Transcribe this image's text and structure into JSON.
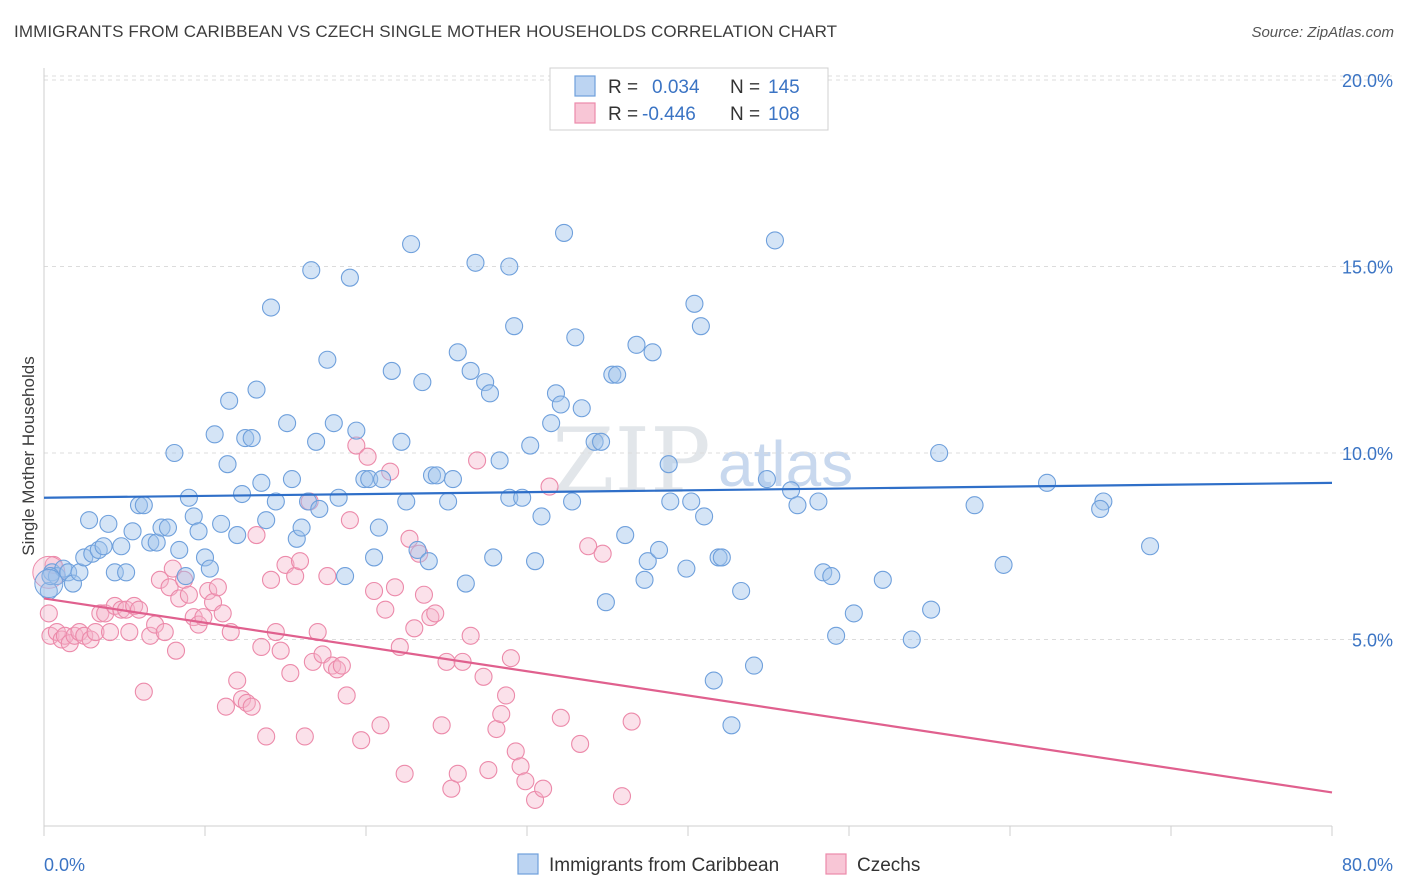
{
  "title": "IMMIGRANTS FROM CARIBBEAN VS CZECH SINGLE MOTHER HOUSEHOLDS CORRELATION CHART",
  "source": "Source: ZipAtlas.com",
  "watermark": {
    "zip": "ZIP",
    "atlas": "atlas"
  },
  "legend": {
    "r_label": "R =",
    "n_label": "N =",
    "series1": {
      "r": "0.034",
      "n": "145"
    },
    "series2": {
      "r": "-0.446",
      "n": "108"
    }
  },
  "chart_data": {
    "type": "scatter",
    "title": "IMMIGRANTS FROM CARIBBEAN VS CZECH SINGLE MOTHER HOUSEHOLDS CORRELATION CHART",
    "xlabel": "",
    "ylabel": "Single Mother Households",
    "xlim": [
      0,
      80
    ],
    "ylim": [
      0,
      20
    ],
    "x_tick_labels": {
      "min": "0.0%",
      "max": "80.0%"
    },
    "y_ticks": [
      5,
      10,
      15,
      20
    ],
    "y_tick_labels": [
      "5.0%",
      "10.0%",
      "15.0%",
      "20.0%"
    ],
    "colors": {
      "blue": "#6fa0dc",
      "pink": "#ec8aaa",
      "blue_line": "#2f6fc8",
      "pink_line": "#e0608e"
    },
    "series": [
      {
        "name": "Immigrants from Caribbean",
        "color": "blue",
        "trend": {
          "x": [
            0,
            80
          ],
          "y": [
            8.8,
            9.2
          ]
        },
        "points": [
          [
            0.3,
            6.3
          ],
          [
            0.5,
            6.8
          ],
          [
            0.8,
            6.7
          ],
          [
            1.2,
            6.9
          ],
          [
            1.5,
            6.8
          ],
          [
            1.8,
            6.5
          ],
          [
            2.2,
            6.8
          ],
          [
            2.5,
            7.2
          ],
          [
            2.8,
            8.2
          ],
          [
            3.0,
            7.3
          ],
          [
            3.4,
            7.4
          ],
          [
            3.7,
            7.5
          ],
          [
            4.0,
            8.1
          ],
          [
            4.4,
            6.8
          ],
          [
            4.8,
            7.5
          ],
          [
            5.1,
            6.8
          ],
          [
            5.5,
            7.9
          ],
          [
            5.9,
            8.6
          ],
          [
            6.2,
            8.6
          ],
          [
            6.6,
            7.6
          ],
          [
            7.0,
            7.6
          ],
          [
            7.3,
            8.0
          ],
          [
            7.7,
            8.0
          ],
          [
            8.1,
            10.0
          ],
          [
            8.4,
            7.4
          ],
          [
            8.8,
            6.7
          ],
          [
            9.0,
            8.8
          ],
          [
            9.3,
            8.3
          ],
          [
            9.6,
            7.9
          ],
          [
            10.0,
            7.2
          ],
          [
            10.3,
            6.9
          ],
          [
            10.6,
            10.5
          ],
          [
            11.0,
            8.1
          ],
          [
            11.4,
            9.7
          ],
          [
            11.5,
            11.4
          ],
          [
            12.0,
            7.8
          ],
          [
            12.3,
            8.9
          ],
          [
            12.5,
            10.4
          ],
          [
            12.9,
            10.4
          ],
          [
            13.2,
            11.7
          ],
          [
            13.5,
            9.2
          ],
          [
            13.8,
            8.2
          ],
          [
            14.1,
            13.9
          ],
          [
            14.4,
            8.7
          ],
          [
            15.1,
            10.8
          ],
          [
            15.4,
            9.3
          ],
          [
            15.7,
            7.7
          ],
          [
            16.0,
            8.0
          ],
          [
            16.4,
            8.7
          ],
          [
            16.6,
            14.9
          ],
          [
            16.9,
            10.3
          ],
          [
            17.1,
            8.5
          ],
          [
            17.6,
            12.5
          ],
          [
            18.0,
            10.8
          ],
          [
            18.3,
            8.8
          ],
          [
            18.7,
            6.7
          ],
          [
            19.0,
            14.7
          ],
          [
            19.4,
            10.6
          ],
          [
            19.9,
            9.3
          ],
          [
            20.2,
            9.3
          ],
          [
            20.5,
            7.2
          ],
          [
            20.8,
            8.0
          ],
          [
            21.0,
            9.3
          ],
          [
            21.6,
            12.2
          ],
          [
            22.2,
            10.3
          ],
          [
            22.5,
            8.7
          ],
          [
            22.8,
            15.6
          ],
          [
            23.2,
            7.4
          ],
          [
            23.5,
            11.9
          ],
          [
            23.9,
            7.1
          ],
          [
            24.1,
            9.4
          ],
          [
            24.4,
            9.4
          ],
          [
            25.1,
            8.7
          ],
          [
            25.4,
            9.3
          ],
          [
            25.7,
            12.7
          ],
          [
            26.2,
            6.5
          ],
          [
            26.5,
            12.2
          ],
          [
            26.8,
            15.1
          ],
          [
            27.4,
            11.9
          ],
          [
            27.7,
            11.6
          ],
          [
            27.9,
            7.2
          ],
          [
            28.3,
            9.8
          ],
          [
            28.9,
            15.0
          ],
          [
            29.2,
            13.4
          ],
          [
            28.9,
            8.8
          ],
          [
            29.7,
            8.8
          ],
          [
            30.2,
            10.2
          ],
          [
            30.5,
            7.1
          ],
          [
            30.9,
            8.3
          ],
          [
            31.5,
            10.8
          ],
          [
            31.8,
            11.6
          ],
          [
            32.1,
            11.3
          ],
          [
            32.3,
            15.9
          ],
          [
            32.8,
            8.7
          ],
          [
            33.0,
            13.1
          ],
          [
            33.4,
            11.2
          ],
          [
            34.2,
            10.3
          ],
          [
            34.6,
            10.3
          ],
          [
            34.9,
            6.0
          ],
          [
            35.3,
            12.1
          ],
          [
            35.6,
            12.1
          ],
          [
            36.1,
            7.8
          ],
          [
            36.8,
            12.9
          ],
          [
            37.3,
            6.6
          ],
          [
            37.5,
            7.1
          ],
          [
            37.8,
            12.7
          ],
          [
            38.2,
            7.4
          ],
          [
            38.8,
            9.7
          ],
          [
            38.9,
            8.7
          ],
          [
            39.9,
            6.9
          ],
          [
            40.2,
            8.7
          ],
          [
            40.4,
            14.0
          ],
          [
            40.8,
            13.4
          ],
          [
            41.0,
            8.3
          ],
          [
            41.6,
            3.9
          ],
          [
            41.9,
            7.2
          ],
          [
            42.1,
            7.2
          ],
          [
            42.7,
            2.7
          ],
          [
            43.3,
            6.3
          ],
          [
            44.1,
            4.3
          ],
          [
            44.9,
            9.3
          ],
          [
            45.4,
            15.7
          ],
          [
            46.4,
            9.0
          ],
          [
            46.8,
            8.6
          ],
          [
            48.1,
            8.7
          ],
          [
            48.4,
            6.8
          ],
          [
            48.9,
            6.7
          ],
          [
            49.2,
            5.1
          ],
          [
            50.3,
            5.7
          ],
          [
            52.1,
            6.6
          ],
          [
            53.9,
            5.0
          ],
          [
            55.1,
            5.8
          ],
          [
            55.6,
            10.0
          ],
          [
            57.8,
            8.6
          ],
          [
            59.6,
            7.0
          ],
          [
            62.3,
            9.2
          ],
          [
            65.8,
            8.7
          ],
          [
            65.6,
            8.5
          ],
          [
            68.7,
            7.5
          ],
          [
            0.4,
            6.7
          ]
        ]
      },
      {
        "name": "Czechs",
        "color": "pink",
        "trend": {
          "x": [
            0,
            80
          ],
          "y": [
            6.1,
            0.9
          ]
        },
        "points": [
          [
            0.3,
            5.7
          ],
          [
            0.4,
            5.1
          ],
          [
            0.6,
            7.0
          ],
          [
            0.8,
            5.2
          ],
          [
            1.1,
            5.0
          ],
          [
            1.3,
            5.1
          ],
          [
            1.6,
            4.9
          ],
          [
            1.9,
            5.1
          ],
          [
            2.2,
            5.2
          ],
          [
            2.5,
            5.1
          ],
          [
            2.9,
            5.0
          ],
          [
            3.2,
            5.2
          ],
          [
            3.5,
            5.7
          ],
          [
            3.8,
            5.7
          ],
          [
            4.1,
            5.2
          ],
          [
            4.4,
            5.9
          ],
          [
            4.8,
            5.8
          ],
          [
            5.1,
            5.8
          ],
          [
            5.3,
            5.2
          ],
          [
            5.6,
            5.9
          ],
          [
            5.9,
            5.8
          ],
          [
            6.2,
            3.6
          ],
          [
            6.6,
            5.1
          ],
          [
            6.9,
            5.4
          ],
          [
            7.2,
            6.6
          ],
          [
            7.5,
            5.2
          ],
          [
            7.8,
            6.4
          ],
          [
            8.0,
            6.9
          ],
          [
            8.2,
            4.7
          ],
          [
            8.4,
            6.1
          ],
          [
            8.7,
            6.6
          ],
          [
            9.0,
            6.2
          ],
          [
            9.3,
            5.6
          ],
          [
            9.6,
            5.4
          ],
          [
            9.9,
            5.6
          ],
          [
            10.2,
            6.3
          ],
          [
            10.5,
            6.0
          ],
          [
            10.8,
            6.4
          ],
          [
            11.1,
            5.7
          ],
          [
            11.3,
            3.2
          ],
          [
            11.6,
            5.2
          ],
          [
            12.0,
            3.9
          ],
          [
            12.3,
            3.4
          ],
          [
            12.6,
            3.3
          ],
          [
            12.9,
            3.2
          ],
          [
            13.2,
            7.8
          ],
          [
            13.5,
            4.8
          ],
          [
            13.8,
            2.4
          ],
          [
            14.1,
            6.6
          ],
          [
            14.4,
            5.2
          ],
          [
            14.7,
            4.7
          ],
          [
            15.0,
            7.0
          ],
          [
            15.3,
            4.1
          ],
          [
            15.6,
            6.7
          ],
          [
            15.9,
            7.1
          ],
          [
            16.2,
            2.4
          ],
          [
            16.5,
            8.7
          ],
          [
            16.7,
            4.4
          ],
          [
            17.0,
            5.2
          ],
          [
            17.3,
            4.6
          ],
          [
            17.6,
            6.7
          ],
          [
            17.9,
            4.3
          ],
          [
            18.2,
            4.2
          ],
          [
            18.5,
            4.3
          ],
          [
            18.8,
            3.5
          ],
          [
            19.0,
            8.2
          ],
          [
            19.4,
            10.2
          ],
          [
            19.7,
            2.3
          ],
          [
            20.1,
            9.9
          ],
          [
            20.5,
            6.3
          ],
          [
            20.9,
            2.7
          ],
          [
            21.2,
            5.8
          ],
          [
            21.5,
            9.5
          ],
          [
            21.8,
            6.4
          ],
          [
            22.1,
            4.8
          ],
          [
            22.4,
            1.4
          ],
          [
            22.7,
            7.7
          ],
          [
            23.0,
            5.3
          ],
          [
            23.3,
            7.3
          ],
          [
            23.6,
            6.2
          ],
          [
            24.0,
            5.6
          ],
          [
            24.3,
            5.7
          ],
          [
            24.7,
            2.7
          ],
          [
            25.0,
            4.4
          ],
          [
            25.3,
            1.0
          ],
          [
            25.7,
            1.4
          ],
          [
            26.0,
            4.4
          ],
          [
            26.5,
            5.1
          ],
          [
            26.9,
            9.8
          ],
          [
            27.3,
            4.0
          ],
          [
            27.6,
            1.5
          ],
          [
            28.1,
            2.6
          ],
          [
            28.4,
            3.0
          ],
          [
            28.7,
            3.5
          ],
          [
            29.0,
            4.5
          ],
          [
            29.3,
            2.0
          ],
          [
            29.6,
            1.6
          ],
          [
            29.9,
            1.2
          ],
          [
            30.5,
            0.7
          ],
          [
            31.0,
            1.0
          ],
          [
            31.4,
            9.1
          ],
          [
            32.1,
            2.9
          ],
          [
            33.3,
            2.2
          ],
          [
            33.8,
            7.5
          ],
          [
            34.7,
            7.3
          ],
          [
            35.9,
            0.8
          ],
          [
            36.5,
            2.8
          ]
        ]
      }
    ]
  },
  "bottom_legend": {
    "series1": "Immigrants from Caribbean",
    "series2": "Czechs"
  }
}
